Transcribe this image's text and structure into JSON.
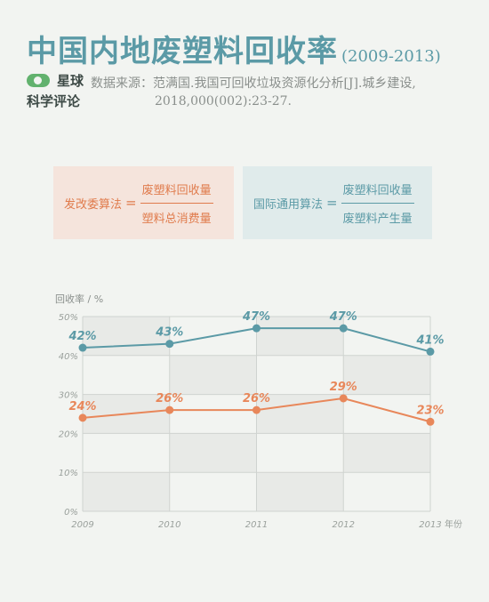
{
  "title": {
    "main": "中国内地废塑料回收率",
    "years": "(2009-2013)"
  },
  "brand": {
    "line1": "星球",
    "line2": "科学评论"
  },
  "source": {
    "line1": "数据来源：范满国.我国可回收垃圾资源化分析[J].城乡建设,",
    "line2": "2018,000(002):23-27."
  },
  "formulas": [
    {
      "label": "发改委算法",
      "eq": "=",
      "numerator": "废塑料回收量",
      "denominator": "塑料总消费量",
      "color": "#e07b4c"
    },
    {
      "label": "国际通用算法",
      "eq": "=",
      "numerator": "废塑料回收量",
      "denominator": "废塑料产生量",
      "color": "#5b9aa6"
    }
  ],
  "chart_data": {
    "type": "line",
    "ylabel": "回收率 / %",
    "xlabel": "年份",
    "x": [
      "2009",
      "2010",
      "2011",
      "2012",
      "2013"
    ],
    "ylim": [
      0,
      50
    ],
    "yticks": [
      "0%",
      "10%",
      "20%",
      "30%",
      "40%",
      "50%"
    ],
    "grid": true,
    "series": [
      {
        "values": [
          42,
          43,
          47,
          47,
          41
        ],
        "labels": [
          "42%",
          "43%",
          "47%",
          "47%",
          "41%"
        ],
        "color": "#5b9aa6"
      },
      {
        "values": [
          24,
          26,
          26,
          29,
          23
        ],
        "labels": [
          "24%",
          "26%",
          "26%",
          "29%",
          "23%"
        ],
        "color": "#e8875a"
      }
    ]
  }
}
